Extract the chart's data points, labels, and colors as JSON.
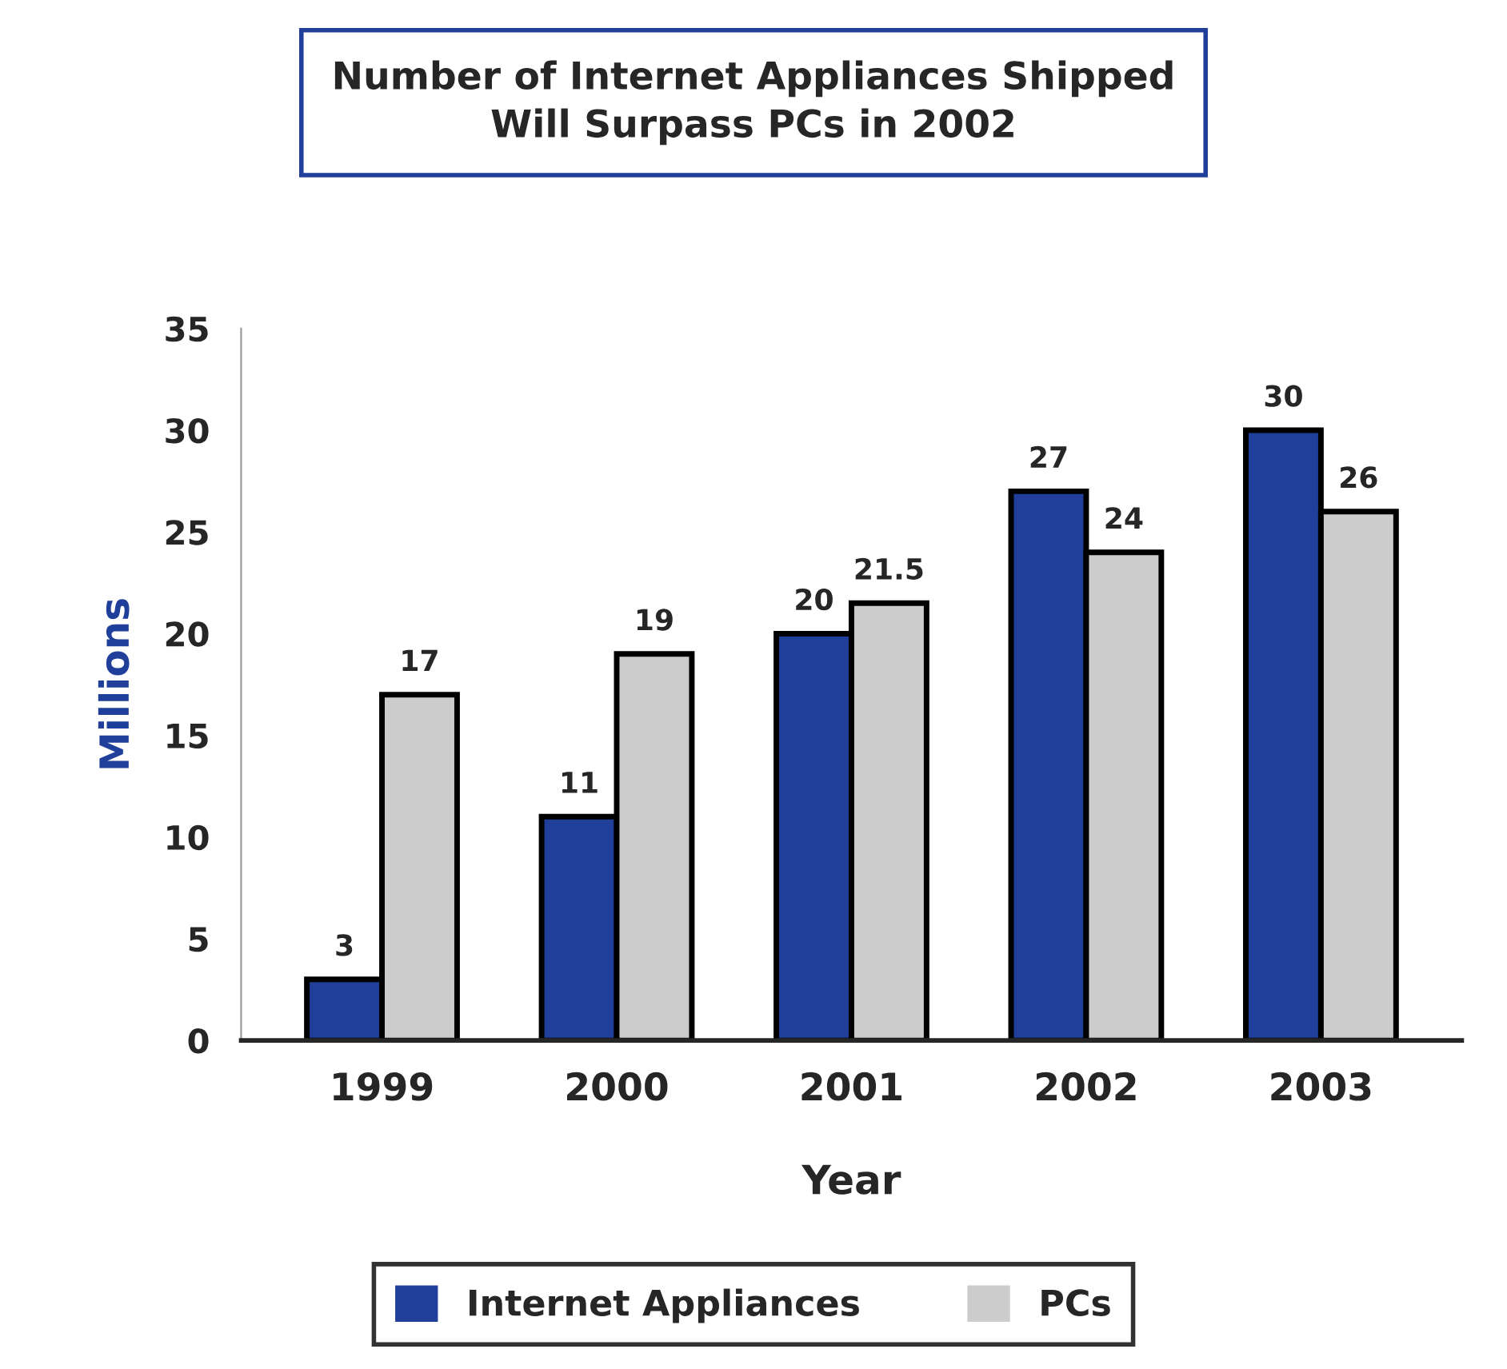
{
  "chart_data": {
    "type": "bar",
    "title": "Number of Internet Appliances Shipped\nWill Surpass PCs in 2002",
    "xlabel": "Year",
    "ylabel": "Millions",
    "categories": [
      "1999",
      "2000",
      "2001",
      "2002",
      "2003"
    ],
    "series": [
      {
        "name": "Internet Appliances",
        "color": "#1f3f9a",
        "values": [
          3,
          11,
          20,
          27,
          30
        ]
      },
      {
        "name": "PCs",
        "color": "#cccccc",
        "values": [
          17,
          19,
          21.5,
          24,
          26
        ]
      }
    ],
    "ylim": [
      0,
      35
    ],
    "yticks": [
      0,
      5,
      10,
      15,
      20,
      25,
      30,
      35
    ],
    "data_labels": true,
    "grid": false,
    "legend": "bottom"
  }
}
